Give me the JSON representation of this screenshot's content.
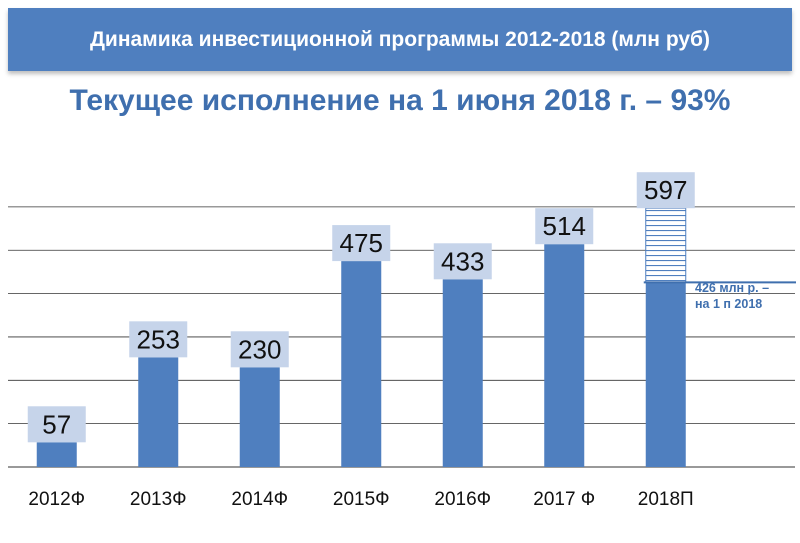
{
  "header": {
    "banner_title": "Динамика инвестиционной программы 2012-2018 (млн руб)",
    "subtitle": "Текущее исполнение на 1 июня 2018 г. – 93%"
  },
  "colors": {
    "banner": "#4f7fbf",
    "bar": "#4f7fbf",
    "label_box": "#c6d4ea",
    "subtitle": "#3f6fae",
    "gridline": "#333333"
  },
  "chart_data": {
    "type": "bar",
    "categories": [
      "2012Ф",
      "2013Ф",
      "2014Ф",
      "2015Ф",
      "2016Ф",
      "2017 Ф",
      "2018П"
    ],
    "values": [
      57,
      253,
      230,
      475,
      433,
      514,
      597
    ],
    "value_labels": [
      "57",
      "253",
      "230",
      "475",
      "433",
      "514",
      "597"
    ],
    "ylim": [
      0,
      700
    ],
    "y_gridline_step": 100,
    "grid": true,
    "legend": "none",
    "annotations": [
      {
        "category": "2018П",
        "value": 426,
        "text_lines": [
          "426 млн р. –",
          "на 1 п 2018"
        ],
        "note": "hatched portion above represents the remainder of the plan"
      }
    ]
  }
}
